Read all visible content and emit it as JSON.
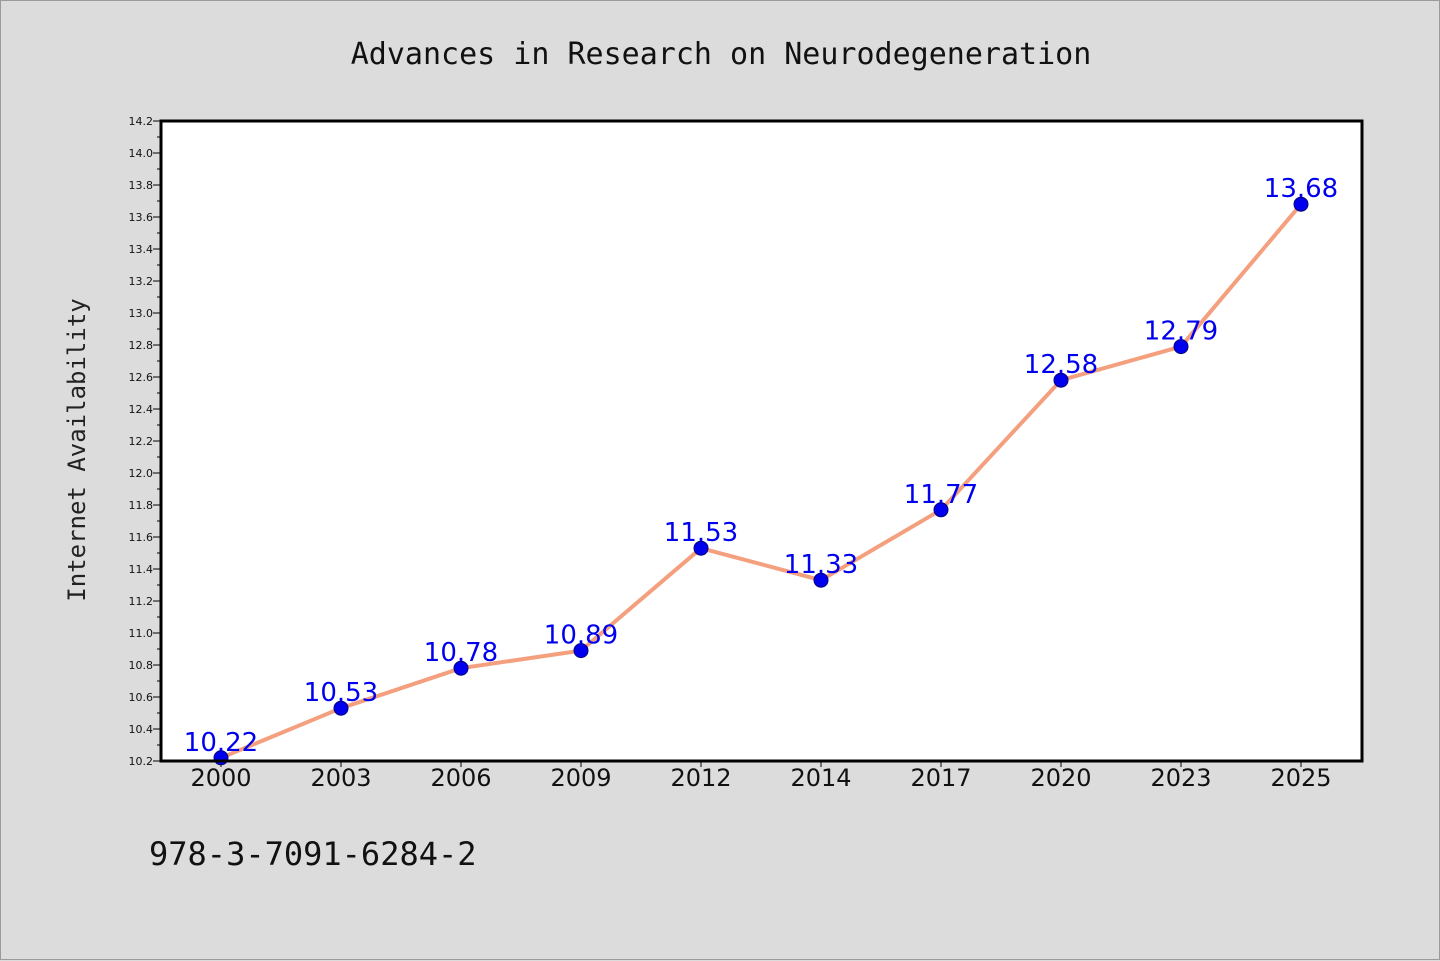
{
  "chart_data": {
    "type": "line",
    "title": "Advances in Research on Neurodegeneration",
    "xlabel": "",
    "ylabel": "Internet Availability",
    "categories": [
      "2000",
      "2003",
      "2006",
      "2009",
      "2012",
      "2014",
      "2017",
      "2020",
      "2023",
      "2025"
    ],
    "series": [
      {
        "values": [
          10.22,
          10.53,
          10.78,
          10.89,
          11.53,
          11.33,
          11.77,
          12.58,
          12.79,
          13.68
        ]
      }
    ],
    "data_labels": [
      "10.22",
      "10.53",
      "10.78",
      "10.89",
      "11.53",
      "11.33",
      "11.77",
      "12.58",
      "12.79",
      "13.68"
    ],
    "ylim": [
      10.2,
      14.2
    ],
    "y_ticks": [
      "10.2",
      "10.4",
      "10.6",
      "10.8",
      "11.0",
      "11.2",
      "11.4",
      "11.6",
      "11.8",
      "12.0",
      "12.2",
      "12.4",
      "12.6",
      "12.8",
      "13.0",
      "13.2",
      "13.4",
      "13.6",
      "13.8",
      "14.0",
      "14.2"
    ],
    "y_minor_step": 0.1,
    "grid": false,
    "legend": "none",
    "colors": {
      "line": "#f4a07f",
      "marker": "#0000ee",
      "marker_edge": "#00007a",
      "data_label": "#0000ee",
      "plot_bg": "#ffffff",
      "figure_bg": "#dcdcdc",
      "frame": "#000000"
    }
  },
  "footer": {
    "text": "978-3-7091-6284-2"
  }
}
